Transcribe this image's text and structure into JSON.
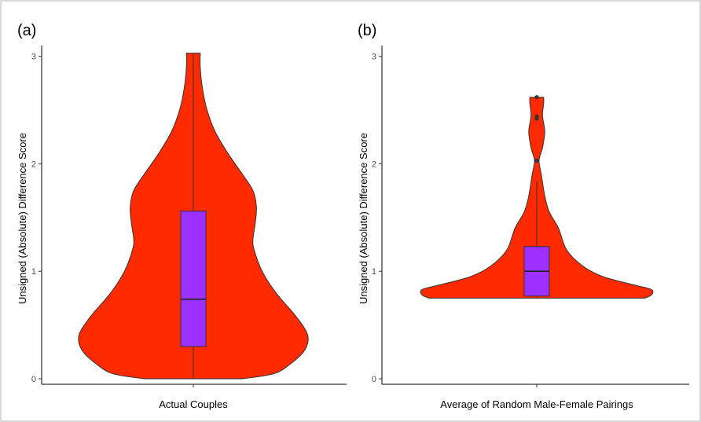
{
  "chart_data": [
    {
      "type": "violin",
      "panel_label": "(a)",
      "xlabel": "Actual Couples",
      "ylabel": "Unsigned (Absolute) Difference Score",
      "ylim": [
        0,
        3.1
      ],
      "yticks": [
        0,
        1,
        2,
        3
      ],
      "grid": false,
      "violin_color": "#ff2a00",
      "box_color": "#9b30ff",
      "density_profile": [
        {
          "y": 0.0,
          "half_width": 0.43
        },
        {
          "y": 0.05,
          "half_width": 0.71
        },
        {
          "y": 0.15,
          "half_width": 0.86
        },
        {
          "y": 0.25,
          "half_width": 0.96
        },
        {
          "y": 0.35,
          "half_width": 1.0
        },
        {
          "y": 0.45,
          "half_width": 0.98
        },
        {
          "y": 0.6,
          "half_width": 0.88
        },
        {
          "y": 0.8,
          "half_width": 0.72
        },
        {
          "y": 1.0,
          "half_width": 0.6
        },
        {
          "y": 1.2,
          "half_width": 0.53
        },
        {
          "y": 1.3,
          "half_width": 0.52
        },
        {
          "y": 1.45,
          "half_width": 0.54
        },
        {
          "y": 1.6,
          "half_width": 0.55
        },
        {
          "y": 1.75,
          "half_width": 0.52
        },
        {
          "y": 1.9,
          "half_width": 0.43
        },
        {
          "y": 2.1,
          "half_width": 0.3
        },
        {
          "y": 2.3,
          "half_width": 0.19
        },
        {
          "y": 2.5,
          "half_width": 0.12
        },
        {
          "y": 2.7,
          "half_width": 0.08
        },
        {
          "y": 2.9,
          "half_width": 0.06
        },
        {
          "y": 3.03,
          "half_width": 0.06
        }
      ],
      "box": {
        "whisker_low": 0.0,
        "q1": 0.3,
        "median": 0.74,
        "q3": 1.56,
        "whisker_high": 3.03
      },
      "outliers": []
    },
    {
      "type": "violin",
      "panel_label": "(b)",
      "xlabel": "Average of Random Male-Female Pairings",
      "ylabel": "Unsigned (Absolute) Difference Score",
      "ylim": [
        0,
        3.1
      ],
      "yticks": [
        0,
        1,
        2,
        3
      ],
      "grid": false,
      "violin_color": "#ff2a00",
      "box_color": "#9b30ff",
      "density_profile": [
        {
          "y": 0.75,
          "half_width": 0.94
        },
        {
          "y": 0.78,
          "half_width": 1.0
        },
        {
          "y": 0.83,
          "half_width": 1.0
        },
        {
          "y": 0.87,
          "half_width": 0.86
        },
        {
          "y": 0.95,
          "half_width": 0.58
        },
        {
          "y": 1.05,
          "half_width": 0.4
        },
        {
          "y": 1.2,
          "half_width": 0.26
        },
        {
          "y": 1.4,
          "half_width": 0.19
        },
        {
          "y": 1.55,
          "half_width": 0.11
        },
        {
          "y": 1.7,
          "half_width": 0.07
        },
        {
          "y": 1.9,
          "half_width": 0.04
        },
        {
          "y": 2.03,
          "half_width": 0.02
        },
        {
          "y": 2.15,
          "half_width": 0.05
        },
        {
          "y": 2.3,
          "half_width": 0.07
        },
        {
          "y": 2.45,
          "half_width": 0.05
        },
        {
          "y": 2.56,
          "half_width": 0.06
        },
        {
          "y": 2.62,
          "half_width": 0.06
        }
      ],
      "box": {
        "whisker_low": 0.76,
        "q1": 0.77,
        "median": 1.0,
        "q3": 1.23,
        "whisker_high": 1.84
      },
      "outliers": [
        2.03,
        2.42,
        2.44,
        2.62
      ]
    }
  ]
}
